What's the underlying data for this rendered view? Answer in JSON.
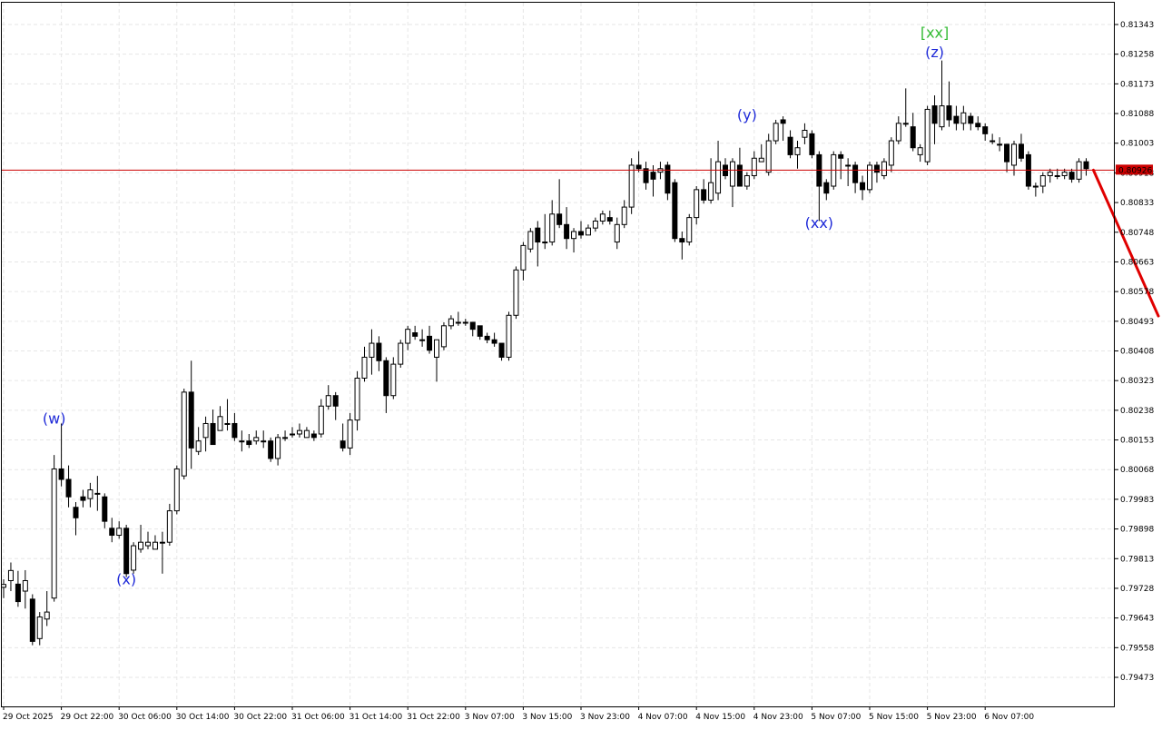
{
  "chart_data": {
    "type": "candlestick",
    "price_scale": {
      "min": 0.7939,
      "max": 0.814,
      "ticks": [
        "0.81343",
        "0.81258",
        "0.81173",
        "0.81088",
        "0.81003",
        "0.80918",
        "0.80833",
        "0.80748",
        "0.80663",
        "0.80578",
        "0.80493",
        "0.80408",
        "0.80323",
        "0.80238",
        "0.80153",
        "0.80068",
        "0.79983",
        "0.79898",
        "0.79813",
        "0.79728",
        "0.79643",
        "0.79558",
        "0.79473"
      ]
    },
    "time_axis": {
      "labels": [
        "29 Oct 2025",
        "29 Oct 22:00",
        "30 Oct 06:00",
        "30 Oct 14:00",
        "30 Oct 22:00",
        "31 Oct 06:00",
        "31 Oct 14:00",
        "31 Oct 22:00",
        "3 Nov 07:00",
        "3 Nov 15:00",
        "3 Nov 23:00",
        "4 Nov 07:00",
        "4 Nov 15:00",
        "4 Nov 23:00",
        "5 Nov 07:00",
        "5 Nov 15:00",
        "5 Nov 23:00",
        "6 Nov 07:00"
      ],
      "label_index_spacing": 8
    },
    "current_price": {
      "label": "0.80926",
      "value": 0.80926,
      "line_color": "#cc0000",
      "box_color": "#cc0000",
      "text_color": "#ffffff"
    },
    "candle_colors": {
      "bull": "#ffffff",
      "bear": "#000000",
      "wick": "#000000"
    },
    "grid": true,
    "candles": [
      [
        0.79731,
        0.79739,
        0.79754,
        0.797
      ],
      [
        0.7975,
        0.79779,
        0.79802,
        0.7972
      ],
      [
        0.7974,
        0.7969,
        0.79778,
        0.79675
      ],
      [
        0.7972,
        0.7975,
        0.7978,
        0.7967
      ],
      [
        0.79697,
        0.79576,
        0.79711,
        0.79565
      ],
      [
        0.79584,
        0.79646,
        0.7966,
        0.79565
      ],
      [
        0.7964,
        0.7966,
        0.7972,
        0.7962
      ],
      [
        0.797,
        0.8007,
        0.8011,
        0.7969
      ],
      [
        0.8007,
        0.8004,
        0.802,
        0.8002
      ],
      [
        0.8004,
        0.7999,
        0.8008,
        0.7996
      ],
      [
        0.7996,
        0.7993,
        0.79975,
        0.7988
      ],
      [
        0.7999,
        0.7998,
        0.8001,
        0.7996
      ],
      [
        0.79985,
        0.8001,
        0.8003,
        0.7996
      ],
      [
        0.8,
        0.8,
        0.8005,
        0.7995
      ],
      [
        0.7999,
        0.7992,
        0.8,
        0.799
      ],
      [
        0.799,
        0.7988,
        0.7993,
        0.7986
      ],
      [
        0.7988,
        0.799,
        0.7992,
        0.7987
      ],
      [
        0.799,
        0.7977,
        0.7991,
        0.7976
      ],
      [
        0.7978,
        0.7985,
        0.7986,
        0.7977
      ],
      [
        0.7984,
        0.7986,
        0.7991,
        0.7983
      ],
      [
        0.7985,
        0.7986,
        0.7989,
        0.7984
      ],
      [
        0.7984,
        0.7986,
        0.7988,
        0.7984
      ],
      [
        0.7986,
        0.7986,
        0.7989,
        0.7977
      ],
      [
        0.7986,
        0.7995,
        0.7997,
        0.7985
      ],
      [
        0.7995,
        0.8007,
        0.8008,
        0.7994
      ],
      [
        0.8005,
        0.8029,
        0.803,
        0.8004
      ],
      [
        0.8029,
        0.8013,
        0.8038,
        0.8007
      ],
      [
        0.8012,
        0.8015,
        0.8019,
        0.8011
      ],
      [
        0.8016,
        0.802,
        0.8022,
        0.8012
      ],
      [
        0.802,
        0.8014,
        0.8024,
        0.8014
      ],
      [
        0.8018,
        0.8022,
        0.8025,
        0.8018
      ],
      [
        0.802,
        0.802,
        0.8027,
        0.8018
      ],
      [
        0.802,
        0.8016,
        0.8023,
        0.8015
      ],
      [
        0.8015,
        0.8015,
        0.8018,
        0.8012
      ],
      [
        0.8015,
        0.8014,
        0.8017,
        0.8013
      ],
      [
        0.8015,
        0.8016,
        0.8018,
        0.8014
      ],
      [
        0.8015,
        0.8015,
        0.8018,
        0.8013
      ],
      [
        0.8015,
        0.801,
        0.8016,
        0.8009
      ],
      [
        0.801,
        0.8016,
        0.8017,
        0.8008
      ],
      [
        0.8016,
        0.8016,
        0.8018,
        0.8015
      ],
      [
        0.8017,
        0.8017,
        0.8019,
        0.8016
      ],
      [
        0.8017,
        0.8018,
        0.802,
        0.8016
      ],
      [
        0.8016,
        0.8018,
        0.8019,
        0.8016
      ],
      [
        0.8017,
        0.8016,
        0.8018,
        0.8015
      ],
      [
        0.8017,
        0.8025,
        0.8027,
        0.8016
      ],
      [
        0.8025,
        0.8028,
        0.8031,
        0.8024
      ],
      [
        0.8028,
        0.8025,
        0.8029,
        0.8021
      ],
      [
        0.8015,
        0.8013,
        0.802,
        0.8012
      ],
      [
        0.8013,
        0.8021,
        0.8023,
        0.8011
      ],
      [
        0.8021,
        0.8033,
        0.8035,
        0.8018
      ],
      [
        0.8033,
        0.8039,
        0.8042,
        0.8032
      ],
      [
        0.8039,
        0.8043,
        0.8047,
        0.8034
      ],
      [
        0.8043,
        0.8038,
        0.8045,
        0.8035
      ],
      [
        0.8038,
        0.8028,
        0.8039,
        0.8023
      ],
      [
        0.8028,
        0.8037,
        0.8039,
        0.8027
      ],
      [
        0.8037,
        0.8043,
        0.8044,
        0.8036
      ],
      [
        0.8043,
        0.8047,
        0.8048,
        0.8041
      ],
      [
        0.8046,
        0.8045,
        0.8048,
        0.8044
      ],
      [
        0.8044,
        0.8044,
        0.8047,
        0.8042
      ],
      [
        0.8045,
        0.8041,
        0.8048,
        0.804
      ],
      [
        0.8039,
        0.8044,
        0.8044,
        0.8032
      ],
      [
        0.8042,
        0.8048,
        0.8049,
        0.8041
      ],
      [
        0.8048,
        0.805,
        0.8051,
        0.8047
      ],
      [
        0.8049,
        0.8049,
        0.8052,
        0.8048
      ],
      [
        0.8049,
        0.8049,
        0.805,
        0.8048
      ],
      [
        0.8049,
        0.8047,
        0.8049,
        0.8045
      ],
      [
        0.8048,
        0.8045,
        0.8048,
        0.8044
      ],
      [
        0.8045,
        0.8044,
        0.8046,
        0.8043
      ],
      [
        0.8044,
        0.8043,
        0.8046,
        0.8042
      ],
      [
        0.8043,
        0.8039,
        0.8043,
        0.8038
      ],
      [
        0.8039,
        0.8051,
        0.8052,
        0.8038
      ],
      [
        0.8051,
        0.8064,
        0.8065,
        0.805
      ],
      [
        0.8064,
        0.8071,
        0.8072,
        0.8061
      ],
      [
        0.807,
        0.8075,
        0.8076,
        0.8069
      ],
      [
        0.8076,
        0.8072,
        0.8078,
        0.8065
      ],
      [
        0.8072,
        0.8072,
        0.808,
        0.807
      ],
      [
        0.8072,
        0.808,
        0.8084,
        0.8071
      ],
      [
        0.808,
        0.8077,
        0.809,
        0.8076
      ],
      [
        0.8077,
        0.8073,
        0.8082,
        0.807
      ],
      [
        0.8073,
        0.8075,
        0.8076,
        0.8069
      ],
      [
        0.8075,
        0.8074,
        0.8078,
        0.8073
      ],
      [
        0.8074,
        0.8076,
        0.8077,
        0.8074
      ],
      [
        0.8076,
        0.8078,
        0.8079,
        0.8075
      ],
      [
        0.8078,
        0.808,
        0.8081,
        0.8077
      ],
      [
        0.8079,
        0.8078,
        0.8081,
        0.8077
      ],
      [
        0.8072,
        0.8077,
        0.8079,
        0.807
      ],
      [
        0.8077,
        0.8082,
        0.8084,
        0.8076
      ],
      [
        0.8082,
        0.8094,
        0.8096,
        0.808
      ],
      [
        0.8094,
        0.8093,
        0.8098,
        0.8092
      ],
      [
        0.8093,
        0.8089,
        0.8095,
        0.8087
      ],
      [
        0.8092,
        0.809,
        0.8094,
        0.8085
      ],
      [
        0.8092,
        0.8093,
        0.8095,
        0.809
      ],
      [
        0.8094,
        0.8086,
        0.8095,
        0.8084
      ],
      [
        0.8089,
        0.8073,
        0.809,
        0.8072
      ],
      [
        0.8073,
        0.8072,
        0.8075,
        0.8067
      ],
      [
        0.8072,
        0.8079,
        0.808,
        0.8071
      ],
      [
        0.8079,
        0.8087,
        0.8088,
        0.8077
      ],
      [
        0.8087,
        0.8084,
        0.809,
        0.8083
      ],
      [
        0.8084,
        0.8089,
        0.8096,
        0.8083
      ],
      [
        0.8086,
        0.8095,
        0.8101,
        0.8084
      ],
      [
        0.8094,
        0.8091,
        0.8096,
        0.809
      ],
      [
        0.8088,
        0.8095,
        0.8096,
        0.8082
      ],
      [
        0.8094,
        0.8088,
        0.8099,
        0.8088
      ],
      [
        0.8088,
        0.8091,
        0.8092,
        0.8087
      ],
      [
        0.8091,
        0.8096,
        0.8098,
        0.809
      ],
      [
        0.8095,
        0.8096,
        0.81,
        0.8095
      ],
      [
        0.8092,
        0.8101,
        0.8103,
        0.8091
      ],
      [
        0.8101,
        0.8106,
        0.8107,
        0.81
      ],
      [
        0.8107,
        0.8106,
        0.8108,
        0.8101
      ],
      [
        0.8102,
        0.8097,
        0.8104,
        0.8096
      ],
      [
        0.8097,
        0.8099,
        0.8101,
        0.8093
      ],
      [
        0.8102,
        0.8104,
        0.8106,
        0.81
      ],
      [
        0.8103,
        0.8097,
        0.8104,
        0.8096
      ],
      [
        0.8097,
        0.8088,
        0.8098,
        0.8078
      ],
      [
        0.8089,
        0.8086,
        0.809,
        0.8084
      ],
      [
        0.8088,
        0.8097,
        0.8098,
        0.8087
      ],
      [
        0.8097,
        0.8096,
        0.8098,
        0.809
      ],
      [
        0.8094,
        0.8094,
        0.8096,
        0.8088
      ],
      [
        0.8094,
        0.8089,
        0.8095,
        0.8086
      ],
      [
        0.8089,
        0.8087,
        0.8091,
        0.8084
      ],
      [
        0.8087,
        0.8094,
        0.8095,
        0.8086
      ],
      [
        0.8094,
        0.8092,
        0.8095,
        0.8089
      ],
      [
        0.8091,
        0.8095,
        0.8096,
        0.809
      ],
      [
        0.8094,
        0.8101,
        0.8102,
        0.8092
      ],
      [
        0.8101,
        0.8106,
        0.8108,
        0.81
      ],
      [
        0.8106,
        0.8106,
        0.8116,
        0.8105
      ],
      [
        0.8105,
        0.8099,
        0.8109,
        0.8098
      ],
      [
        0.8097,
        0.8099,
        0.81,
        0.8095
      ],
      [
        0.8095,
        0.811,
        0.8111,
        0.8094
      ],
      [
        0.8111,
        0.8106,
        0.8114,
        0.81
      ],
      [
        0.8105,
        0.8111,
        0.8124,
        0.8104
      ],
      [
        0.8111,
        0.8107,
        0.8118,
        0.8105
      ],
      [
        0.8108,
        0.8106,
        0.8111,
        0.8104
      ],
      [
        0.8106,
        0.8109,
        0.8111,
        0.8104
      ],
      [
        0.8108,
        0.8106,
        0.8109,
        0.8104
      ],
      [
        0.8106,
        0.8105,
        0.8108,
        0.8104
      ],
      [
        0.8105,
        0.8103,
        0.8106,
        0.8101
      ],
      [
        0.8101,
        0.8101,
        0.8103,
        0.81
      ],
      [
        0.81,
        0.81,
        0.8102,
        0.8098
      ],
      [
        0.81,
        0.8095,
        0.81,
        0.8092
      ],
      [
        0.8094,
        0.81,
        0.8101,
        0.8091
      ],
      [
        0.81,
        0.8096,
        0.8103,
        0.8095
      ],
      [
        0.8097,
        0.8088,
        0.8098,
        0.8087
      ],
      [
        0.8088,
        0.8088,
        0.8089,
        0.8085
      ],
      [
        0.8088,
        0.8091,
        0.8092,
        0.8086
      ],
      [
        0.8091,
        0.8092,
        0.8093,
        0.8089
      ],
      [
        0.8091,
        0.8091,
        0.8093,
        0.809
      ],
      [
        0.8091,
        0.8092,
        0.8093,
        0.809
      ],
      [
        0.8092,
        0.809,
        0.8093,
        0.8089
      ],
      [
        0.809,
        0.8095,
        0.8096,
        0.8089
      ],
      [
        0.8095,
        0.8093,
        0.8096,
        0.8091
      ]
    ],
    "wave_labels": [
      {
        "text": "(w)",
        "candle": 7,
        "price": 0.802,
        "color": "#1f2ad8"
      },
      {
        "text": "(x)",
        "candle": 17,
        "price": 0.7974,
        "color": "#1f2ad8"
      },
      {
        "text": "(xx)",
        "candle": 113,
        "price": 0.8076,
        "color": "#1f2ad8"
      },
      {
        "text": "(y)",
        "candle": 103,
        "price": 0.8107,
        "color": "#1f2ad8"
      },
      {
        "text": "(z)",
        "candle": 129,
        "price": 0.8125,
        "color": "#1f2ad8"
      },
      {
        "text": "[xx]",
        "candle": 129,
        "price": 0.81305,
        "color": "#33bb33"
      }
    ],
    "forecast": {
      "color": "#e00000",
      "start": {
        "candle": 151,
        "price": 0.80926
      },
      "end": {
        "candle": 160,
        "price": 0.80508
      }
    }
  }
}
